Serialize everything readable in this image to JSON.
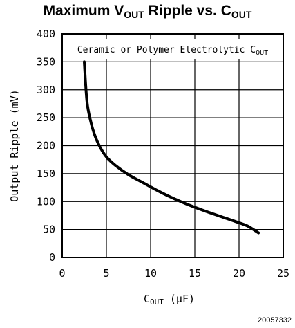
{
  "chart_data": {
    "type": "line",
    "title": {
      "main": "Maximum V",
      "sub1": "OUT",
      "mid": " Ripple vs. C",
      "sub2": "OUT"
    },
    "xlabel": {
      "main": "C",
      "sub": "OUT",
      "rest": " (μF)"
    },
    "ylabel": "Output Ripple (mV)",
    "annotation": {
      "main": "Ceramic or Polymer Electrolytic C",
      "sub": "OUT"
    },
    "figure_code": "20057332",
    "xlim": [
      0,
      25
    ],
    "ylim": [
      0,
      400
    ],
    "xticks": [
      0,
      5,
      10,
      15,
      20,
      25
    ],
    "yticks": [
      0,
      50,
      100,
      150,
      200,
      250,
      300,
      350,
      400
    ],
    "grid": true,
    "series": [
      {
        "x": [
          2.5,
          2.8,
          3.2,
          3.7,
          4.3,
          5.0,
          6.0,
          7.5,
          9.0,
          10.5,
          12.0,
          14.0,
          16.0,
          18.0,
          20.0,
          21.0,
          22.2
        ],
        "y": [
          350,
          280,
          245,
          218,
          197,
          180,
          165,
          148,
          135,
          122,
          110,
          96,
          84,
          73,
          62,
          56,
          44
        ]
      }
    ]
  }
}
